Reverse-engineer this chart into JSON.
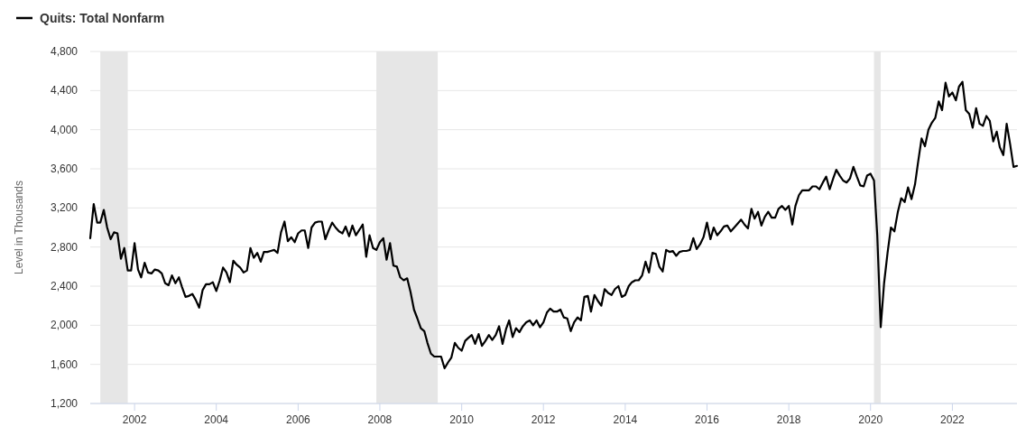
{
  "chart_data": {
    "type": "line",
    "ylabel": "Level in Thousands",
    "legend": "top left",
    "grid": "y",
    "line_style": "solid",
    "marker": "none",
    "xlim": [
      "2000-12",
      "2023-08"
    ],
    "xticks": [
      "2002",
      "2004",
      "2006",
      "2008",
      "2010",
      "2012",
      "2014",
      "2016",
      "2018",
      "2020",
      "2022"
    ],
    "ylim": [
      1200,
      4800
    ],
    "yticks": [
      {
        "value": 1200,
        "label": "1,200"
      },
      {
        "value": 1600,
        "label": "1,600"
      },
      {
        "value": 2000,
        "label": "2,000"
      },
      {
        "value": 2400,
        "label": "2,400"
      },
      {
        "value": 2800,
        "label": "2,800"
      },
      {
        "value": 3200,
        "label": "3,200"
      },
      {
        "value": 3600,
        "label": "3,600"
      },
      {
        "value": 4000,
        "label": "4,000"
      },
      {
        "value": 4400,
        "label": "4,400"
      },
      {
        "value": 4800,
        "label": "4,800"
      }
    ],
    "bands": [
      {
        "axis": "x",
        "from": "2001-03",
        "to": "2001-11",
        "color": "#e6e6e6"
      },
      {
        "axis": "x",
        "from": "2007-12",
        "to": "2009-06",
        "color": "#e6e6e6"
      },
      {
        "axis": "x",
        "from": "2020-02",
        "to": "2020-04",
        "color": "#e6e6e6"
      }
    ],
    "x": [
      "2000-12",
      "2001-01",
      "2001-02",
      "2001-03",
      "2001-04",
      "2001-05",
      "2001-06",
      "2001-07",
      "2001-08",
      "2001-09",
      "2001-10",
      "2001-11",
      "2001-12",
      "2002-01",
      "2002-02",
      "2002-03",
      "2002-04",
      "2002-05",
      "2002-06",
      "2002-07",
      "2002-08",
      "2002-09",
      "2002-10",
      "2002-11",
      "2002-12",
      "2003-01",
      "2003-02",
      "2003-03",
      "2003-04",
      "2003-05",
      "2003-06",
      "2003-07",
      "2003-08",
      "2003-09",
      "2003-10",
      "2003-11",
      "2003-12",
      "2004-01",
      "2004-02",
      "2004-03",
      "2004-04",
      "2004-05",
      "2004-06",
      "2004-07",
      "2004-08",
      "2004-09",
      "2004-10",
      "2004-11",
      "2004-12",
      "2005-01",
      "2005-02",
      "2005-03",
      "2005-04",
      "2005-05",
      "2005-06",
      "2005-07",
      "2005-08",
      "2005-09",
      "2005-10",
      "2005-11",
      "2005-12",
      "2006-01",
      "2006-02",
      "2006-03",
      "2006-04",
      "2006-05",
      "2006-06",
      "2006-07",
      "2006-08",
      "2006-09",
      "2006-10",
      "2006-11",
      "2006-12",
      "2007-01",
      "2007-02",
      "2007-03",
      "2007-04",
      "2007-05",
      "2007-06",
      "2007-08",
      "2007-09",
      "2007-10",
      "2007-11",
      "2007-12",
      "2008-01",
      "2008-02",
      "2008-03",
      "2008-04",
      "2008-05",
      "2008-06",
      "2008-07",
      "2008-08",
      "2008-09",
      "2008-10",
      "2008-11",
      "2008-12",
      "2009-01",
      "2009-02",
      "2009-03",
      "2009-04",
      "2009-05",
      "2009-06",
      "2009-07",
      "2009-08",
      "2009-09",
      "2009-10",
      "2009-11",
      "2009-12",
      "2010-01",
      "2010-02",
      "2010-03",
      "2010-04",
      "2010-05",
      "2010-06",
      "2010-07",
      "2010-08",
      "2010-09",
      "2010-10",
      "2010-11",
      "2010-12",
      "2011-01",
      "2011-02",
      "2011-03",
      "2011-04",
      "2011-05",
      "2011-06",
      "2011-07",
      "2011-08",
      "2011-09",
      "2011-10",
      "2011-11",
      "2011-12",
      "2012-01",
      "2012-02",
      "2012-03",
      "2012-04",
      "2012-05",
      "2012-06",
      "2012-07",
      "2012-08",
      "2012-09",
      "2012-10",
      "2012-11",
      "2012-12",
      "2013-01",
      "2013-02",
      "2013-03",
      "2013-04",
      "2013-05",
      "2013-06",
      "2013-07",
      "2013-08",
      "2013-09",
      "2013-10",
      "2013-11",
      "2013-12",
      "2014-01",
      "2014-02",
      "2014-03",
      "2014-04",
      "2014-05",
      "2014-06",
      "2014-07",
      "2014-08",
      "2014-09",
      "2014-10",
      "2014-11",
      "2014-12",
      "2015-01",
      "2015-02",
      "2015-03",
      "2015-04",
      "2015-05",
      "2015-06",
      "2015-07",
      "2015-08",
      "2015-09",
      "2015-10",
      "2015-11",
      "2015-12",
      "2016-01",
      "2016-02",
      "2016-03",
      "2016-04",
      "2016-05",
      "2016-06",
      "2016-07",
      "2016-08",
      "2016-09",
      "2016-10",
      "2016-11",
      "2016-12",
      "2017-01",
      "2017-02",
      "2017-03",
      "2017-04",
      "2017-05",
      "2017-06",
      "2017-07",
      "2017-08",
      "2017-09",
      "2017-10",
      "2017-11",
      "2017-12",
      "2018-01",
      "2018-02",
      "2018-03",
      "2018-04",
      "2018-05",
      "2018-06",
      "2018-07",
      "2018-08",
      "2018-09",
      "2018-10",
      "2018-11",
      "2018-12",
      "2019-01",
      "2019-02",
      "2019-03",
      "2019-04",
      "2019-05",
      "2019-06",
      "2019-07",
      "2019-08",
      "2019-09",
      "2019-10",
      "2019-11",
      "2019-12",
      "2020-01",
      "2020-02",
      "2020-03",
      "2020-04",
      "2020-05",
      "2020-06",
      "2020-07",
      "2020-08",
      "2020-09",
      "2020-10",
      "2020-11",
      "2020-12",
      "2021-01",
      "2021-02",
      "2021-03",
      "2021-04",
      "2021-05",
      "2021-06",
      "2021-07",
      "2021-08",
      "2021-09",
      "2021-10",
      "2021-11",
      "2021-12",
      "2022-01",
      "2022-02",
      "2022-03",
      "2022-04",
      "2022-05",
      "2022-06",
      "2022-07",
      "2022-08",
      "2022-09",
      "2022-10",
      "2022-11",
      "2022-12",
      "2023-01",
      "2023-02",
      "2023-03",
      "2023-04",
      "2023-05",
      "2023-06",
      "2023-07",
      "2023-08"
    ],
    "series": [
      {
        "name": "Quits: Total Nonfarm",
        "color": "#000000",
        "values": [
          2890,
          3240,
          3050,
          3050,
          3180,
          3000,
          2880,
          2950,
          2940,
          2680,
          2790,
          2560,
          2560,
          2840,
          2570,
          2490,
          2640,
          2540,
          2530,
          2570,
          2560,
          2530,
          2430,
          2410,
          2510,
          2430,
          2490,
          2390,
          2290,
          2300,
          2320,
          2260,
          2180,
          2360,
          2420,
          2420,
          2440,
          2350,
          2460,
          2590,
          2540,
          2440,
          2660,
          2620,
          2590,
          2540,
          2560,
          2790,
          2690,
          2740,
          2650,
          2750,
          2750,
          2760,
          2770,
          2740,
          2950,
          3060,
          2860,
          2900,
          2850,
          2940,
          2970,
          2970,
          2790,
          3000,
          3050,
          3060,
          3060,
          2880,
          2970,
          3050,
          3000,
          2960,
          2940,
          3010,
          2910,
          3020,
          2920,
          3030,
          2700,
          2920,
          2790,
          2770,
          2850,
          2890,
          2670,
          2840,
          2610,
          2600,
          2490,
          2460,
          2480,
          2340,
          2160,
          2070,
          1970,
          1940,
          1820,
          1710,
          1680,
          1680,
          1680,
          1560,
          1620,
          1670,
          1820,
          1770,
          1740,
          1840,
          1870,
          1900,
          1810,
          1910,
          1790,
          1840,
          1900,
          1850,
          1900,
          1990,
          1810,
          1960,
          2050,
          1880,
          1970,
          1930,
          1990,
          2030,
          2050,
          2000,
          2050,
          1980,
          2030,
          2130,
          2170,
          2140,
          2140,
          2160,
          2080,
          2070,
          1940,
          2030,
          2080,
          2050,
          2290,
          2300,
          2140,
          2310,
          2250,
          2200,
          2370,
          2330,
          2310,
          2370,
          2400,
          2290,
          2310,
          2400,
          2440,
          2460,
          2460,
          2510,
          2650,
          2540,
          2740,
          2730,
          2600,
          2550,
          2770,
          2750,
          2760,
          2710,
          2750,
          2760,
          2760,
          2770,
          2890,
          2780,
          2830,
          2900,
          3050,
          2880,
          3000,
          2920,
          2960,
          3010,
          3020,
          2960,
          3000,
          3040,
          3080,
          3030,
          2990,
          3190,
          3090,
          3160,
          3020,
          3110,
          3160,
          3100,
          3100,
          3190,
          3220,
          3180,
          3220,
          3030,
          3220,
          3330,
          3380,
          3380,
          3380,
          3420,
          3420,
          3390,
          3460,
          3520,
          3390,
          3500,
          3590,
          3530,
          3480,
          3460,
          3500,
          3620,
          3520,
          3430,
          3420,
          3530,
          3550,
          3480,
          2920,
          1980,
          2430,
          2740,
          3000,
          2960,
          3160,
          3300,
          3260,
          3410,
          3290,
          3440,
          3670,
          3910,
          3830,
          4000,
          4070,
          4120,
          4290,
          4200,
          4480,
          4340,
          4380,
          4300,
          4440,
          4490,
          4200,
          4160,
          4020,
          4220,
          4060,
          4040,
          4140,
          4090,
          3880,
          3980,
          3820,
          3740,
          4060,
          3850,
          3620,
          3630
        ]
      }
    ]
  }
}
